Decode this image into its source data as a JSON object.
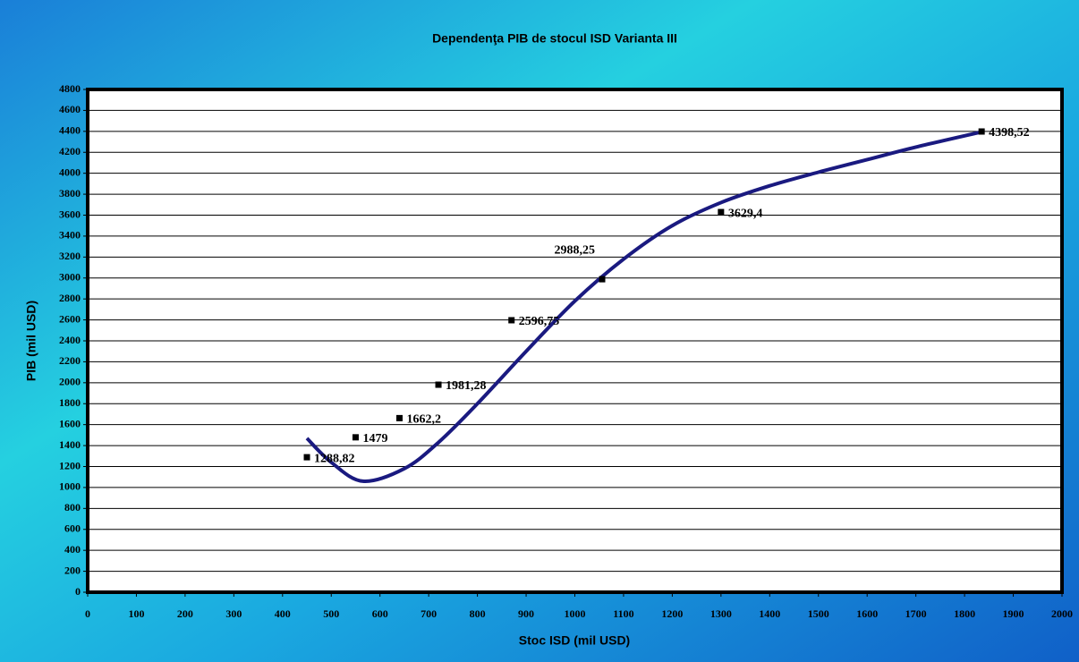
{
  "chart_data": {
    "type": "scatter",
    "title": "Dependenţa PIB de stocul ISD Varianta III",
    "x_label": "Stoc ISD (mil USD)",
    "y_label": "PIB (mil USD)",
    "xlim": [
      0,
      2000
    ],
    "xticks": [
      0,
      100,
      200,
      300,
      400,
      500,
      600,
      700,
      800,
      900,
      1000,
      1100,
      1200,
      1300,
      1400,
      1500,
      1600,
      1700,
      1800,
      1900,
      2000
    ],
    "ylim": [
      0,
      4800
    ],
    "yticks": [
      0,
      200,
      400,
      600,
      800,
      1000,
      1200,
      1400,
      1600,
      1800,
      2000,
      2200,
      2400,
      2600,
      2800,
      3000,
      3200,
      3400,
      3600,
      3800,
      4000,
      4200,
      4400,
      4600,
      4800
    ],
    "grid": true,
    "series": [
      {
        "type": "scatter",
        "color": "#000000",
        "x": [
          450,
          550,
          640,
          720,
          870,
          1056,
          1300,
          1835
        ],
        "values": [
          1288.82,
          1479,
          1662.2,
          1981.28,
          2596.75,
          2988.25,
          3629.4,
          4398.52
        ],
        "value_labels": [
          "1288,82",
          "1479",
          "1662,2",
          "1981,28",
          "2596,75",
          "2988,25",
          "3629,4",
          "4398,52"
        ]
      },
      {
        "type": "line",
        "color": "#1a1a80",
        "x": [
          450,
          500,
          565,
          650,
          720,
          800,
          900,
          1000,
          1100,
          1200,
          1300,
          1400,
          1500,
          1600,
          1700,
          1840
        ],
        "values": [
          1470,
          1240,
          1060,
          1180,
          1430,
          1800,
          2300,
          2780,
          3180,
          3500,
          3720,
          3880,
          4010,
          4130,
          4250,
          4400
        ]
      }
    ]
  }
}
